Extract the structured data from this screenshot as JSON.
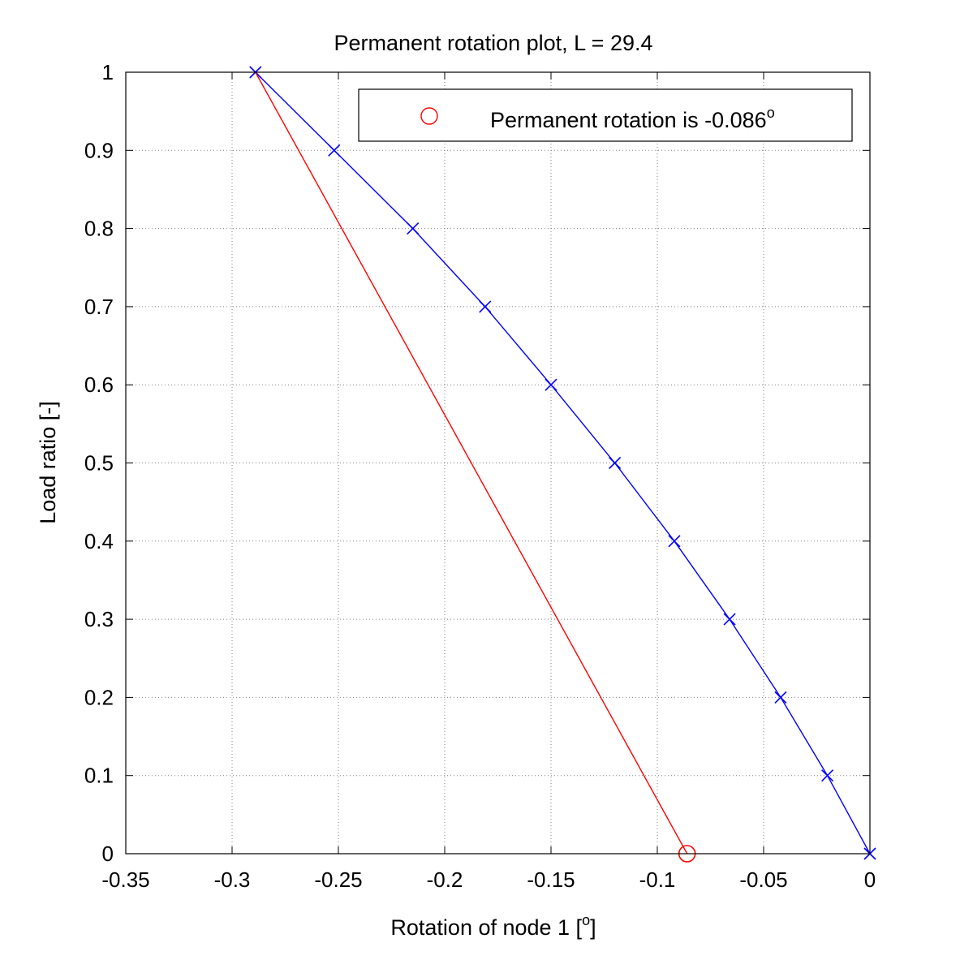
{
  "chart_data": {
    "type": "line",
    "title": "Permanent rotation plot, L = 29.4",
    "xlabel": "Rotation of node 1 [",
    "xlabel_sup": "o",
    "xlabel_end": "]",
    "ylabel": "Load ratio [-]",
    "xlim": [
      -0.35,
      0
    ],
    "ylim": [
      0,
      1
    ],
    "xticks": [
      -0.35,
      -0.3,
      -0.25,
      -0.2,
      -0.15,
      -0.1,
      -0.05,
      0
    ],
    "xtick_labels": [
      "-0.35",
      "-0.3",
      "-0.25",
      "-0.2",
      "-0.15",
      "-0.1",
      "-0.05",
      "0"
    ],
    "yticks": [
      0,
      0.1,
      0.2,
      0.3,
      0.4,
      0.5,
      0.6,
      0.7,
      0.8,
      0.9,
      1
    ],
    "ytick_labels": [
      "0",
      "0.1",
      "0.2",
      "0.3",
      "0.4",
      "0.5",
      "0.6",
      "0.7",
      "0.8",
      "0.9",
      "1"
    ],
    "grid": true,
    "legend_position": "top-right",
    "colors": {
      "loading": "#0000ff",
      "unloading": "#ff0000",
      "grid": "#808080",
      "axis": "#000000"
    },
    "series": [
      {
        "key": "loading",
        "marker": "x",
        "x": [
          0,
          -0.02,
          -0.042,
          -0.066,
          -0.092,
          -0.12,
          -0.15,
          -0.181,
          -0.215,
          -0.252,
          -0.289
        ],
        "y": [
          0,
          0.1,
          0.2,
          0.3,
          0.4,
          0.5,
          0.6,
          0.7,
          0.8,
          0.9,
          1
        ]
      },
      {
        "key": "unloading",
        "marker": "none",
        "x": [
          -0.289,
          -0.086
        ],
        "y": [
          1,
          0
        ]
      },
      {
        "key": "permanent",
        "name": "Permanent rotation is -0.086",
        "name_sup": "o",
        "marker": "circle",
        "x": [
          -0.086
        ],
        "y": [
          0
        ]
      }
    ]
  }
}
